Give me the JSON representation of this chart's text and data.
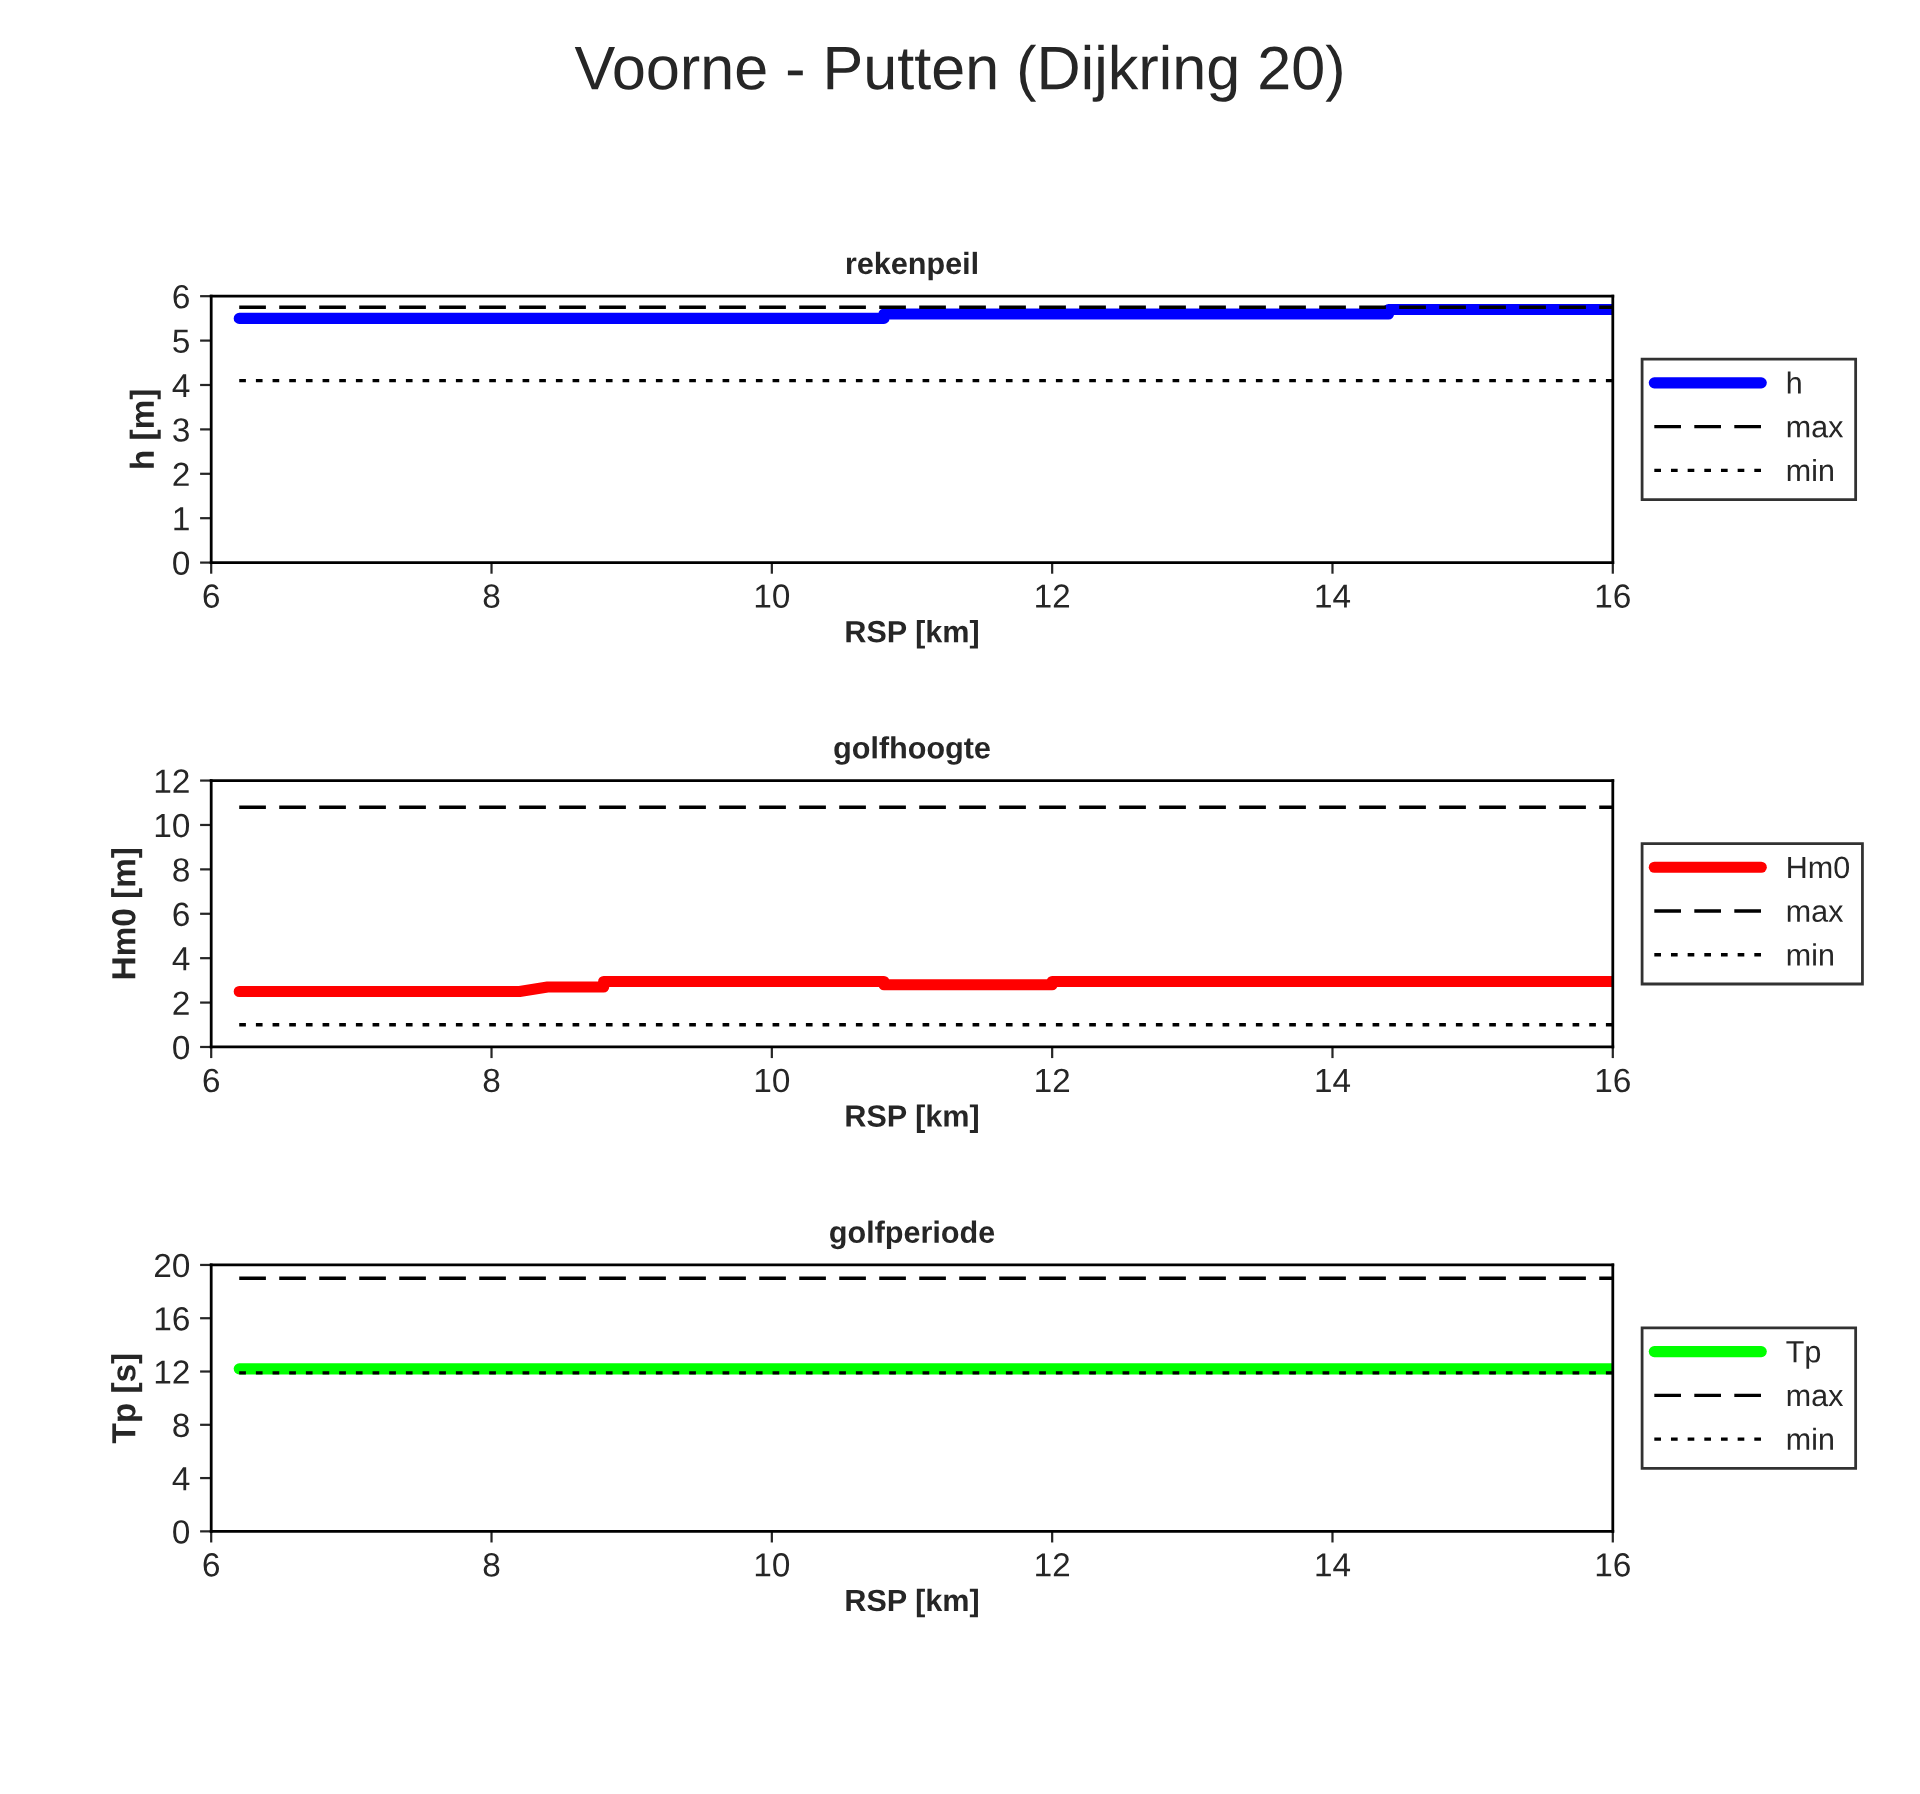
{
  "chart_data": [
    {
      "type": "line",
      "title": "Voorne - Putten (Dijkring 20)",
      "subtitle": "rekenpeil",
      "xlabel": "RSP [km]",
      "ylabel": "h [m]",
      "xlim": [
        6,
        16
      ],
      "xticks": [
        6,
        8,
        10,
        12,
        14,
        16
      ],
      "ylim": [
        0,
        6
      ],
      "yticks": [
        0,
        1,
        2,
        3,
        4,
        5,
        6
      ],
      "grid": false,
      "legend": "right",
      "marker": "none",
      "series": [
        {
          "name": "h",
          "color": "#0000ff",
          "x": [
            6.2,
            10.8,
            10.8,
            14.4,
            14.4,
            16
          ],
          "values": [
            5.5,
            5.5,
            5.6,
            5.6,
            5.7,
            5.7
          ],
          "line_style": "solid"
        },
        {
          "name": "max",
          "color": "#000000",
          "x": [
            6.2,
            16
          ],
          "values": [
            5.75,
            5.75
          ],
          "line_style": "dashed"
        },
        {
          "name": "min",
          "color": "#000000",
          "x": [
            6.2,
            16
          ],
          "values": [
            4.1,
            4.1
          ],
          "line_style": "dotted"
        }
      ]
    },
    {
      "type": "line",
      "title": "golfhoogte",
      "xlabel": "RSP [km]",
      "ylabel": "Hm0 [m]",
      "xlim": [
        6,
        16
      ],
      "xticks": [
        6,
        8,
        10,
        12,
        14,
        16
      ],
      "ylim": [
        0,
        12
      ],
      "yticks": [
        0,
        2,
        4,
        6,
        8,
        10,
        12
      ],
      "grid": false,
      "legend": "right",
      "marker": "none",
      "series": [
        {
          "name": "Hm0",
          "color": "#ff0000",
          "x": [
            6.2,
            8.2,
            8.4,
            8.8,
            8.8,
            10.8,
            10.8,
            12,
            12,
            16
          ],
          "values": [
            2.5,
            2.5,
            2.7,
            2.7,
            2.95,
            2.95,
            2.8,
            2.8,
            2.95,
            2.95
          ],
          "line_style": "solid"
        },
        {
          "name": "max",
          "color": "#000000",
          "x": [
            6.2,
            16
          ],
          "values": [
            10.8,
            10.8
          ],
          "line_style": "dashed"
        },
        {
          "name": "min",
          "color": "#000000",
          "x": [
            6.2,
            16
          ],
          "values": [
            1.0,
            1.0
          ],
          "line_style": "dotted"
        }
      ]
    },
    {
      "type": "line",
      "title": "golfperiode",
      "xlabel": "RSP [km]",
      "ylabel": "Tp [s]",
      "xlim": [
        6,
        16
      ],
      "xticks": [
        6,
        8,
        10,
        12,
        14,
        16
      ],
      "ylim": [
        0,
        20
      ],
      "yticks": [
        0,
        4,
        8,
        12,
        16,
        20
      ],
      "grid": false,
      "legend": "right",
      "marker": "none",
      "series": [
        {
          "name": "Tp",
          "color": "#00ff00",
          "x": [
            6.2,
            16
          ],
          "values": [
            12.2,
            12.2
          ],
          "line_style": "solid"
        },
        {
          "name": "max",
          "color": "#000000",
          "x": [
            6.2,
            16
          ],
          "values": [
            19,
            19
          ],
          "line_style": "dashed"
        },
        {
          "name": "min",
          "color": "#000000",
          "x": [
            6.2,
            16
          ],
          "values": [
            11.9,
            11.9
          ],
          "line_style": "dotted"
        }
      ]
    }
  ]
}
